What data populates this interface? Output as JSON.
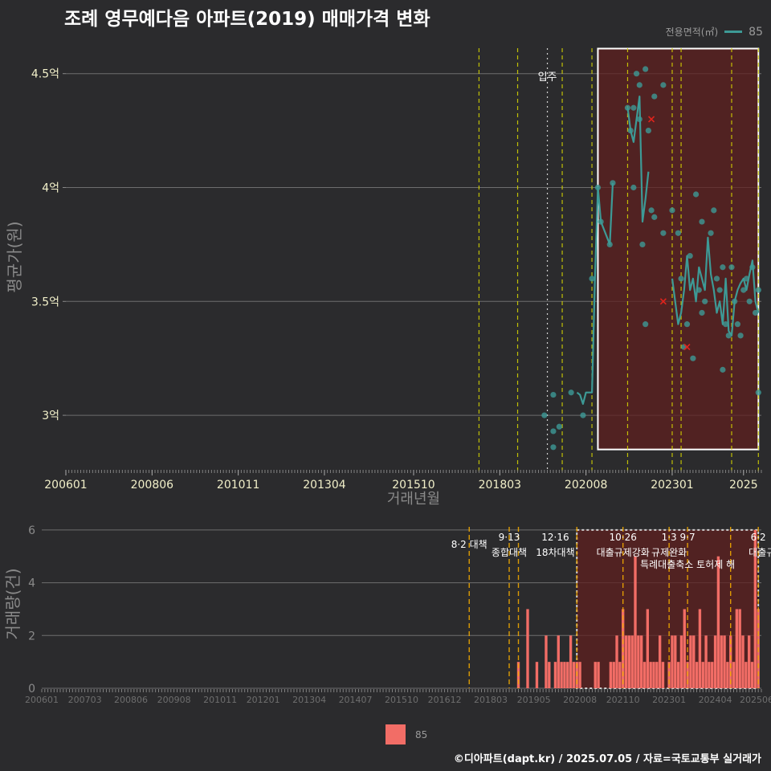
{
  "title": "조례 영무예다음 아파트(2019) 매매가격 변화",
  "legend": {
    "label": "전용면적(㎡)",
    "value": "85",
    "bottom_value": "85",
    "line_color": "#3d9a96",
    "bar_color": "#f26d66"
  },
  "footer": "©디아파트(dapt.kr) / 2025.07.05 / 자료=국토교통부 실거래가",
  "chart_data": [
    {
      "type": "line",
      "title": "조례 영무예다음 아파트(2019) 매매가격 변화",
      "xlabel": "거래년월",
      "ylabel": "평균가(원)",
      "xlim": [
        "200601",
        "202507"
      ],
      "ylim": [
        2.75,
        4.64
      ],
      "y_ticks": [
        3.0,
        3.5,
        4.0,
        4.5
      ],
      "y_tick_labels": [
        "3억",
        "3.5억",
        "4억",
        "4.5억"
      ],
      "x_ticks": [
        "200601",
        "200806",
        "201011",
        "201304",
        "201510",
        "201803",
        "202008",
        "202301",
        "2025"
      ],
      "grid": true,
      "annotation_movein": {
        "label": "입주",
        "date": "201907"
      },
      "policy_lines": [
        "201708",
        "201809",
        "201912",
        "202010",
        "202110",
        "202301",
        "202304",
        "202409",
        "202506"
      ],
      "highlight_period": {
        "from": "202012",
        "to": "202506",
        "ymin": 2.85,
        "ymax": 4.61
      },
      "series": [
        {
          "name": "85",
          "line_points": [
            [
              "202005",
              3.1
            ],
            [
              "202006",
              3.09
            ],
            [
              "202007",
              3.05
            ],
            [
              "202008",
              3.1
            ],
            [
              "202009",
              3.1
            ],
            [
              "202010",
              3.1
            ],
            [
              "202011",
              3.6
            ],
            [
              "202012",
              4.0
            ],
            [
              "202101",
              3.85
            ],
            [
              "202104",
              3.75
            ],
            [
              "202105",
              4.02
            ],
            [
              "202110",
              4.35
            ],
            [
              "202111",
              4.25
            ],
            [
              "202112",
              4.2
            ],
            [
              "202201",
              4.3
            ],
            [
              "202202",
              4.4
            ],
            [
              "202203",
              3.85
            ],
            [
              "202204",
              3.95
            ],
            [
              "202205",
              4.07
            ],
            [
              "202301",
              3.6
            ],
            [
              "202302",
              3.5
            ],
            [
              "202303",
              3.4
            ],
            [
              "202304",
              3.45
            ],
            [
              "202305",
              3.55
            ],
            [
              "202306",
              3.7
            ],
            [
              "202307",
              3.55
            ],
            [
              "202308",
              3.6
            ],
            [
              "202309",
              3.5
            ],
            [
              "202310",
              3.65
            ],
            [
              "202311",
              3.6
            ],
            [
              "202312",
              3.55
            ],
            [
              "202401",
              3.78
            ],
            [
              "202402",
              3.62
            ],
            [
              "202403",
              3.55
            ],
            [
              "202404",
              3.45
            ],
            [
              "202405",
              3.5
            ],
            [
              "202406",
              3.4
            ],
            [
              "202407",
              3.6
            ],
            [
              "202408",
              3.37
            ],
            [
              "202409",
              3.35
            ],
            [
              "202410",
              3.5
            ],
            [
              "202411",
              3.55
            ],
            [
              "202412",
              3.58
            ],
            [
              "202501",
              3.6
            ],
            [
              "202502",
              3.55
            ],
            [
              "202503",
              3.62
            ],
            [
              "202504",
              3.68
            ],
            [
              "202505",
              3.5
            ],
            [
              "202506",
              3.45
            ]
          ],
          "scatter_points": [
            [
              "201906",
              3.0
            ],
            [
              "201909",
              2.86
            ],
            [
              "201909",
              2.93
            ],
            [
              "201909",
              3.09
            ],
            [
              "201911",
              2.95
            ],
            [
              "202003",
              3.1
            ],
            [
              "202007",
              3.0
            ],
            [
              "202010",
              3.6
            ],
            [
              "202012",
              4.0
            ],
            [
              "202101",
              3.85
            ],
            [
              "202104",
              3.75
            ],
            [
              "202105",
              4.02
            ],
            [
              "202110",
              4.35
            ],
            [
              "202111",
              4.25
            ],
            [
              "202112",
              4.35
            ],
            [
              "202112",
              4.0
            ],
            [
              "202201",
              4.5
            ],
            [
              "202202",
              4.45
            ],
            [
              "202202",
              4.3
            ],
            [
              "202203",
              3.75
            ],
            [
              "202204",
              4.52
            ],
            [
              "202204",
              3.4
            ],
            [
              "202205",
              4.25
            ],
            [
              "202206",
              3.9
            ],
            [
              "202207",
              4.4
            ],
            [
              "202207",
              3.87
            ],
            [
              "202210",
              4.45
            ],
            [
              "202210",
              3.8
            ],
            [
              "202301",
              3.9
            ],
            [
              "202303",
              3.8
            ],
            [
              "202304",
              3.6
            ],
            [
              "202305",
              3.3
            ],
            [
              "202306",
              3.4
            ],
            [
              "202307",
              3.7
            ],
            [
              "202308",
              3.25
            ],
            [
              "202309",
              3.97
            ],
            [
              "202310",
              3.55
            ],
            [
              "202311",
              3.85
            ],
            [
              "202311",
              3.45
            ],
            [
              "202312",
              3.5
            ],
            [
              "202402",
              3.8
            ],
            [
              "202403",
              3.9
            ],
            [
              "202404",
              3.6
            ],
            [
              "202405",
              3.55
            ],
            [
              "202406",
              3.65
            ],
            [
              "202406",
              3.2
            ],
            [
              "202407",
              3.4
            ],
            [
              "202408",
              3.35
            ],
            [
              "202409",
              3.65
            ],
            [
              "202410",
              3.5
            ],
            [
              "202411",
              3.4
            ],
            [
              "202412",
              3.35
            ],
            [
              "202501",
              3.55
            ],
            [
              "202502",
              3.6
            ],
            [
              "202503",
              3.5
            ],
            [
              "202504",
              3.65
            ],
            [
              "202505",
              3.45
            ],
            [
              "202506",
              3.1
            ],
            [
              "202506",
              3.55
            ]
          ],
          "cancelled_points": [
            [
              "202206",
              4.3
            ],
            [
              "202210",
              3.5
            ],
            [
              "202306",
              3.3
            ]
          ]
        }
      ]
    },
    {
      "type": "bar",
      "xlabel": "",
      "ylabel": "거래량(건)",
      "xlim": [
        "200601",
        "202507"
      ],
      "ylim": [
        0,
        6.3
      ],
      "y_ticks": [
        0,
        2,
        4,
        6
      ],
      "y_tick_labels": [
        "0",
        "2",
        "4",
        "6"
      ],
      "x_ticks": [
        "200601",
        "200703",
        "200806",
        "200908",
        "201011",
        "201201",
        "201304",
        "201407",
        "201510",
        "201612",
        "201803",
        "201905",
        "202008",
        "202110",
        "202301",
        "202404",
        "202506"
      ],
      "grid": true,
      "policy_lines": [
        "201708",
        "201809",
        "201812",
        "202007",
        "202110",
        "202301",
        "202307",
        "202409",
        "202506"
      ],
      "policy_labels": [
        {
          "date": "201708",
          "date_label": "",
          "text": "8·2 대책"
        },
        {
          "date": "201809",
          "date_label": "9·13",
          "text": "종합대책"
        },
        {
          "date": "201912",
          "date_label": "12·16",
          "text": "18차대책"
        },
        {
          "date": "202110",
          "date_label": "10·26",
          "text": "대출규제강화"
        },
        {
          "date": "202301",
          "date_label": "1·3",
          "text": "규제완화"
        },
        {
          "date": "202307",
          "date_label": "9·7",
          "text": "특례대출축소 토허제 해"
        },
        {
          "date": "202506",
          "date_label": "6·2",
          "text": "대출규"
        }
      ],
      "highlight_period": {
        "from": "202007",
        "to": "202506",
        "ymin": 0,
        "ymax": 6
      },
      "bars": [
        [
          "201812",
          1
        ],
        [
          "201903",
          3
        ],
        [
          "201906",
          1
        ],
        [
          "201909",
          2
        ],
        [
          "201910",
          1
        ],
        [
          "201912",
          1
        ],
        [
          "202001",
          2
        ],
        [
          "202002",
          1
        ],
        [
          "202003",
          1
        ],
        [
          "202004",
          1
        ],
        [
          "202005",
          2
        ],
        [
          "202006",
          1
        ],
        [
          "202007",
          1
        ],
        [
          "202008",
          1
        ],
        [
          "202101",
          1
        ],
        [
          "202102",
          1
        ],
        [
          "202106",
          1
        ],
        [
          "202107",
          1
        ],
        [
          "202108",
          2
        ],
        [
          "202109",
          1
        ],
        [
          "202110",
          3
        ],
        [
          "202111",
          2
        ],
        [
          "202112",
          2
        ],
        [
          "202201",
          2
        ],
        [
          "202202",
          5
        ],
        [
          "202203",
          2
        ],
        [
          "202204",
          2
        ],
        [
          "202205",
          1
        ],
        [
          "202206",
          3
        ],
        [
          "202207",
          1
        ],
        [
          "202208",
          1
        ],
        [
          "202209",
          1
        ],
        [
          "202210",
          2
        ],
        [
          "202211",
          1
        ],
        [
          "202301",
          1
        ],
        [
          "202302",
          2
        ],
        [
          "202303",
          2
        ],
        [
          "202304",
          1
        ],
        [
          "202305",
          2
        ],
        [
          "202306",
          3
        ],
        [
          "202307",
          1
        ],
        [
          "202308",
          2
        ],
        [
          "202309",
          2
        ],
        [
          "202310",
          1
        ],
        [
          "202311",
          3
        ],
        [
          "202312",
          1
        ],
        [
          "202401",
          2
        ],
        [
          "202402",
          1
        ],
        [
          "202403",
          1
        ],
        [
          "202404",
          2
        ],
        [
          "202405",
          5
        ],
        [
          "202406",
          2
        ],
        [
          "202407",
          2
        ],
        [
          "202408",
          1
        ],
        [
          "202409",
          2
        ],
        [
          "202410",
          1
        ],
        [
          "202411",
          3
        ],
        [
          "202412",
          3
        ],
        [
          "202501",
          2
        ],
        [
          "202502",
          1
        ],
        [
          "202503",
          2
        ],
        [
          "202504",
          1
        ],
        [
          "202505",
          6
        ],
        [
          "202506",
          3
        ]
      ]
    }
  ]
}
